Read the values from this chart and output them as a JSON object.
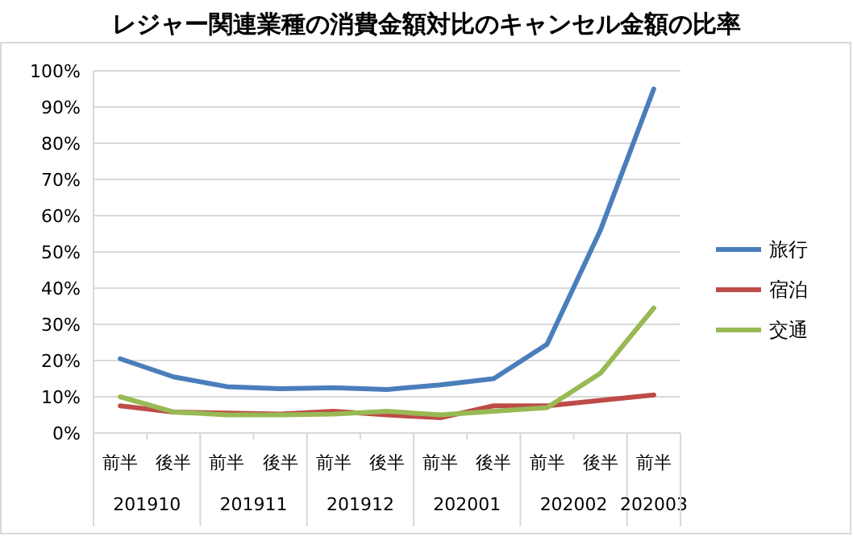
{
  "chart_data": {
    "type": "line",
    "title": "レジャー関連業種の消費金額対比のキャンセル金額の比率",
    "categories": [
      "前半",
      "後半",
      "前半",
      "後半",
      "前半",
      "後半",
      "前半",
      "後半",
      "前半",
      "後半",
      "前半"
    ],
    "annotations": [
      "201910",
      "201911",
      "201912",
      "202001",
      "202002",
      "202003"
    ],
    "series": [
      {
        "name": "旅行",
        "color": "#4a7ebb",
        "values": [
          20.5,
          15.5,
          12.8,
          12.2,
          12.5,
          12,
          13.3,
          15,
          24.5,
          56,
          95
        ]
      },
      {
        "name": "宿泊",
        "color": "#be4b48",
        "values": [
          7.5,
          5.8,
          5.5,
          5.2,
          6,
          5,
          4.2,
          7.5,
          7.5,
          9,
          10.5
        ]
      },
      {
        "name": "交通",
        "color": "#98b954",
        "values": [
          10,
          5.8,
          5,
          5,
          5.2,
          6,
          5,
          6,
          7,
          16.5,
          34.5
        ]
      }
    ],
    "ylim": [
      0,
      100
    ],
    "yticks": [
      {
        "value": 0,
        "label": "0%"
      },
      {
        "value": 10,
        "label": "10%"
      },
      {
        "value": 20,
        "label": "20%"
      },
      {
        "value": 30,
        "label": "30%"
      },
      {
        "value": 40,
        "label": "40%"
      },
      {
        "value": 50,
        "label": "50%"
      },
      {
        "value": 60,
        "label": "60%"
      },
      {
        "value": 70,
        "label": "70%"
      },
      {
        "value": 80,
        "label": "80%"
      },
      {
        "value": 90,
        "label": "90%"
      },
      {
        "value": 100,
        "label": "100%"
      }
    ],
    "grid": "y",
    "legend": "right",
    "marker": "none",
    "line_style": "solid"
  }
}
